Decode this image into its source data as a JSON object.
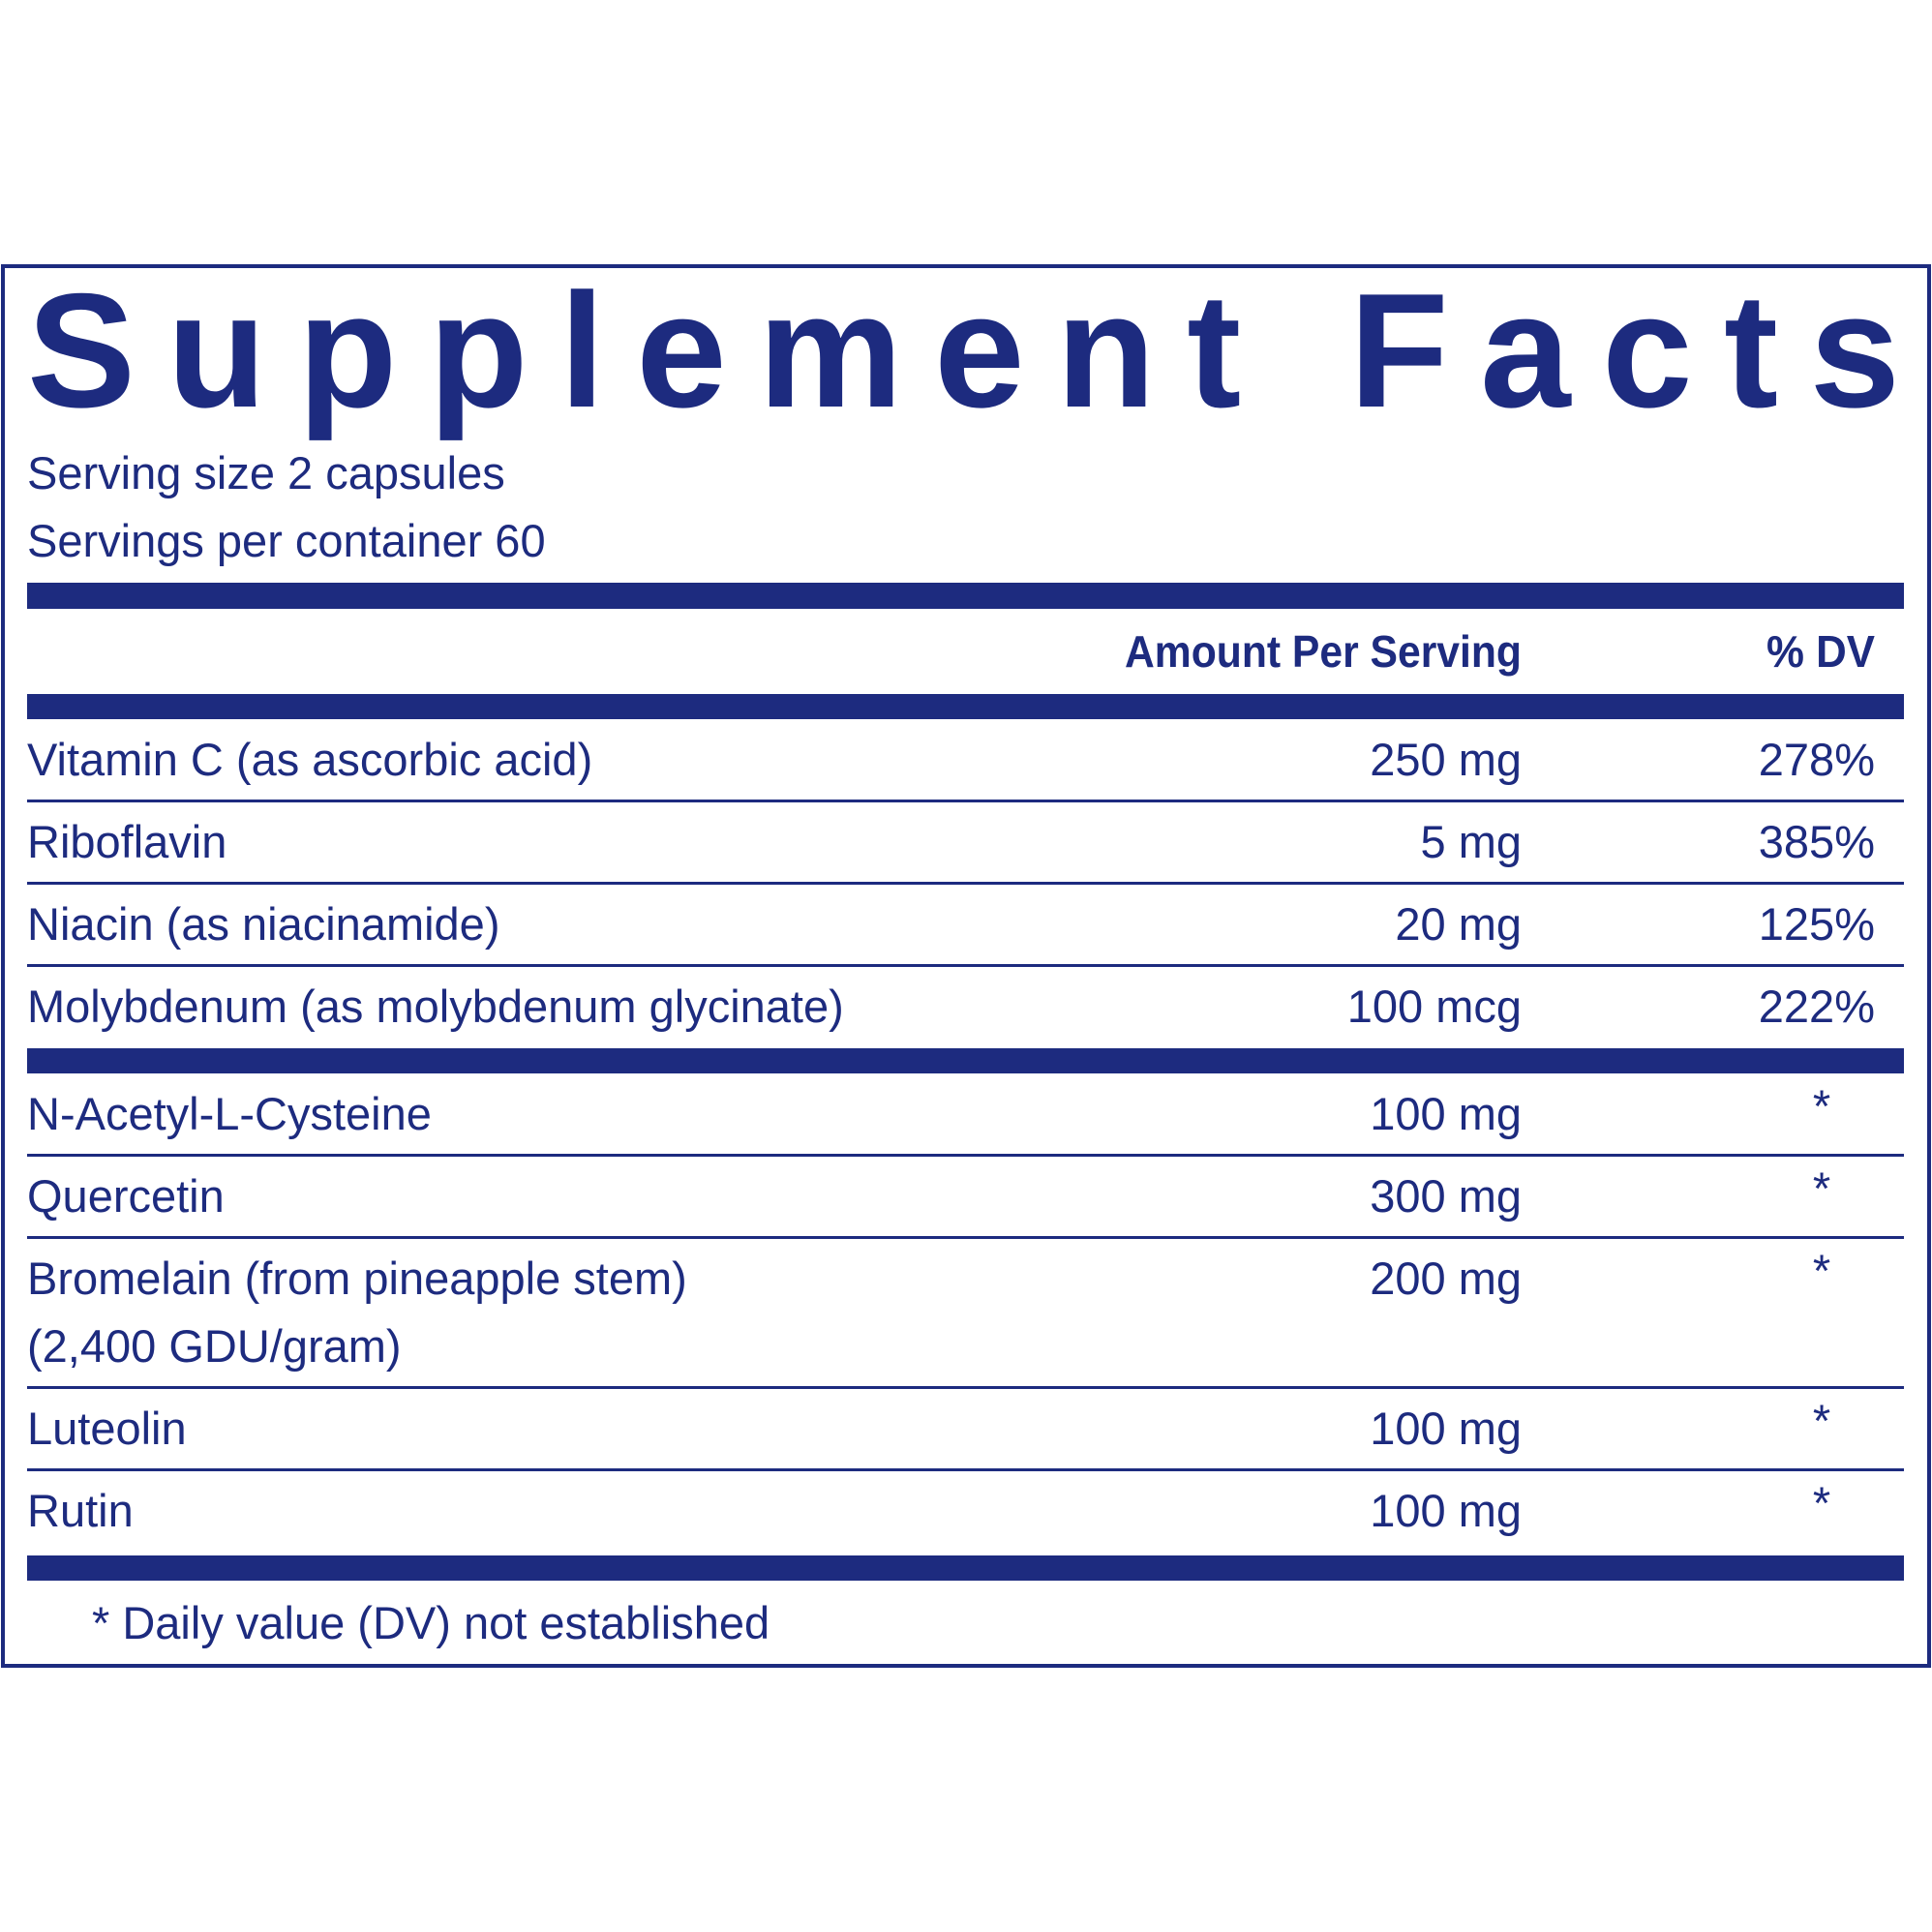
{
  "title": "Supplement Facts",
  "serving_size": "Serving size  2 capsules",
  "servings_per_container": "Servings per container  60",
  "header": {
    "amount": "Amount Per Serving",
    "dv": "% DV"
  },
  "sections": [
    [
      {
        "name": [
          "Vitamin C (as ascorbic acid)"
        ],
        "amount": "250 mg",
        "dv": "278%"
      },
      {
        "name": [
          "Riboflavin"
        ],
        "amount": "5 mg",
        "dv": "385%"
      },
      {
        "name": [
          "Niacin (as niacinamide)"
        ],
        "amount": "20 mg",
        "dv": "125%"
      },
      {
        "name": [
          "Molybdenum (as molybdenum glycinate)"
        ],
        "amount": "100 mcg",
        "dv": "222%"
      }
    ],
    [
      {
        "name": [
          "N-Acetyl-L-Cysteine"
        ],
        "amount": "100 mg",
        "dv": "*"
      },
      {
        "name": [
          "Quercetin"
        ],
        "amount": "300 mg",
        "dv": "*"
      },
      {
        "name": [
          "Bromelain (from pineapple stem)",
          "(2,400 GDU/gram)"
        ],
        "amount": "200 mg",
        "dv": "*"
      },
      {
        "name": [
          "Luteolin"
        ],
        "amount": "100 mg",
        "dv": "*"
      },
      {
        "name": [
          "Rutin"
        ],
        "amount": "100 mg",
        "dv": "*"
      }
    ]
  ],
  "footnote": "* Daily value (DV) not established"
}
